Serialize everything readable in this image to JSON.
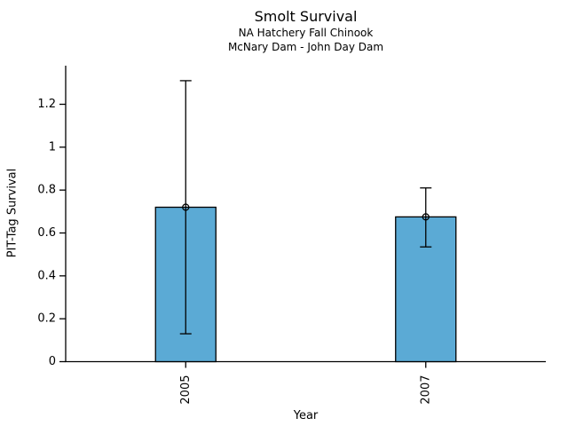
{
  "chart_data": {
    "type": "bar",
    "title": "Smolt Survival",
    "subtitle": [
      "NA Hatchery Fall Chinook",
      "McNary Dam - John Day Dam"
    ],
    "xlabel": "Year",
    "ylabel": "PIT-Tag Survival",
    "categories": [
      "2005",
      "2007"
    ],
    "series": [
      {
        "name": "PIT-Tag Survival",
        "values": [
          0.72,
          0.675
        ],
        "error_low": [
          0.13,
          0.535
        ],
        "error_high": [
          1.31,
          0.81
        ]
      }
    ],
    "yticks": [
      0,
      0.2,
      0.4,
      0.6,
      0.8,
      1,
      1.2
    ],
    "ytick_labels": [
      "0",
      "0.2",
      "0.4",
      "0.6",
      "0.8",
      "1",
      "1.2"
    ],
    "ylim": [
      0,
      1.38
    ],
    "grid": false,
    "legend": false,
    "bar_color": "#5BAAD5",
    "bar_edge_color": "#000000",
    "marker": "open-circle",
    "x_tick_label_rotation": -90
  }
}
